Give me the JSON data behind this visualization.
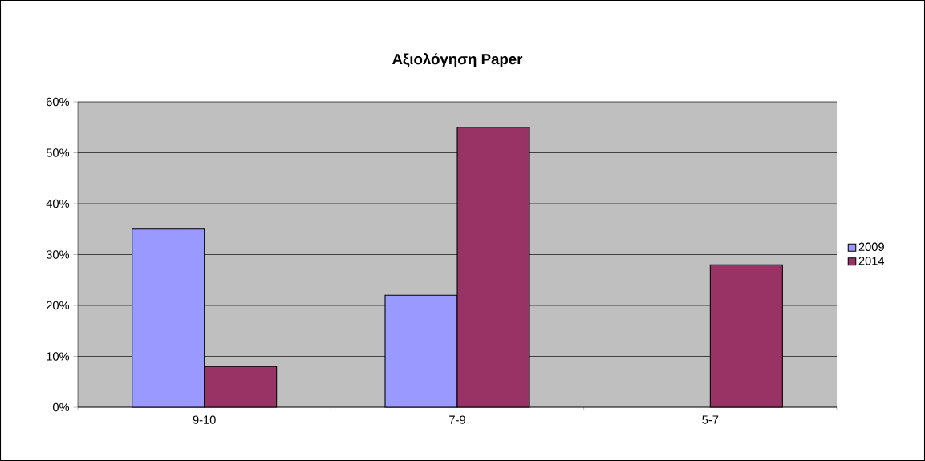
{
  "chart_data": {
    "type": "bar",
    "title": "Αξιολόγηση Paper",
    "categories": [
      "9-10",
      "7-9",
      "5-7"
    ],
    "series": [
      {
        "name": "2009",
        "color": "#9999ff",
        "values": [
          35,
          22,
          null
        ]
      },
      {
        "name": "2014",
        "color": "#993366",
        "values": [
          8,
          55,
          28
        ]
      }
    ],
    "ylim": [
      0,
      60
    ],
    "yticks": [
      {
        "value": 0,
        "label": "0%"
      },
      {
        "value": 10,
        "label": "10%"
      },
      {
        "value": 20,
        "label": "20%"
      },
      {
        "value": 30,
        "label": "30%"
      },
      {
        "value": 40,
        "label": "40%"
      },
      {
        "value": 50,
        "label": "50%"
      },
      {
        "value": 60,
        "label": "60%"
      }
    ],
    "grid": "y",
    "legend": "right"
  }
}
